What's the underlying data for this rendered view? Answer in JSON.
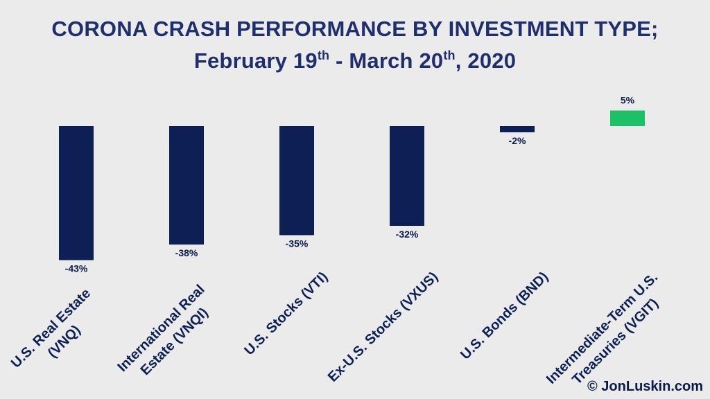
{
  "title": {
    "line1": "CORONA CRASH PERFORMANCE BY INVESTMENT TYPE;",
    "line2_a": "February 19",
    "line2_sup1": "th",
    "line2_b": " - March 20",
    "line2_sup2": "th",
    "line2_c": ", 2020"
  },
  "credit": "© JonLuskin.com",
  "chart_data": {
    "type": "bar",
    "categories": [
      [
        "U.S. Real Estate",
        "(VNQ)"
      ],
      [
        "International Real",
        "Estate (VNQI)"
      ],
      [
        "U.S. Stocks (VTI)"
      ],
      [
        "Ex-U.S. Stocks (VXUS)"
      ],
      [
        "U.S. Bonds (BND)"
      ],
      [
        "Intermediate-Term U.S.",
        "Treasuries (VGIT)"
      ]
    ],
    "values": [
      -43,
      -38,
      -35,
      -32,
      -2,
      5
    ],
    "value_labels": [
      "-43%",
      "-38%",
      "-35%",
      "-32%",
      "-2%",
      "5%"
    ],
    "colors": {
      "negative": "#0d1f55",
      "positive": "#1cc066"
    },
    "grid": false,
    "legend": "none"
  }
}
